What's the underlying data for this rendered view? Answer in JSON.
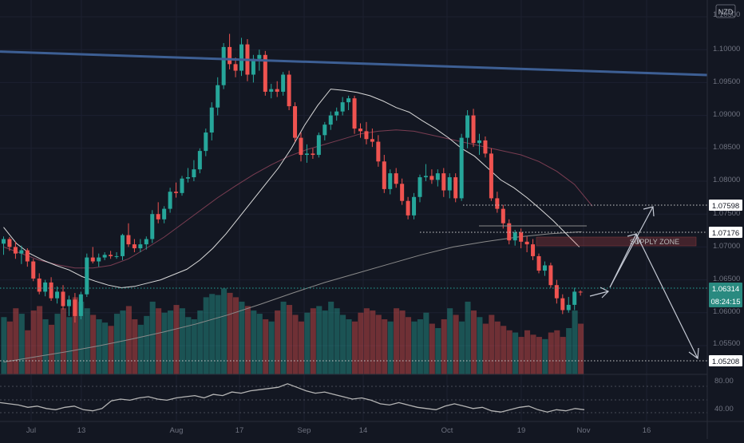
{
  "currency_badge": "NZD",
  "supply_zone_label": "SUPPLY ZONE",
  "price_axis": {
    "ticks": [
      "1.10500",
      "1.10000",
      "1.09500",
      "1.09000",
      "1.08500",
      "1.08000",
      "1.07500",
      "1.07000",
      "1.06500",
      "1.06000",
      "1.05500"
    ]
  },
  "price_tags": {
    "level_1": "1.07598",
    "level_2": "1.07176",
    "current": "1.06314",
    "countdown": "08:24:15",
    "level_3": "1.05208"
  },
  "oscillator_axis": {
    "ticks": [
      "80.00",
      "40.00"
    ]
  },
  "time_axis": {
    "ticks": [
      "Jul",
      "13",
      "Aug",
      "17",
      "Sep",
      "14",
      "Oct",
      "19",
      "Nov",
      "16"
    ]
  },
  "colors": {
    "background": "#131722",
    "bull": "#26a69a",
    "bear": "#ef5350",
    "trendline": "#3d5f94",
    "ma_fast": "#d9d9d9",
    "ma_mid": "#7a3d52",
    "ma_slow": "#8a8a8a",
    "tag_bg": "#ffffff",
    "current_tag_bg": "#2a8a80"
  },
  "chart_data": {
    "type": "candlestick",
    "y_range": [
      1.0495,
      1.1073
    ],
    "oscillator_range": [
      20,
      100
    ],
    "candles": [
      [
        1.0705,
        1.0716,
        1.0688,
        1.0712
      ],
      [
        1.0712,
        1.0715,
        1.0694,
        1.07
      ],
      [
        1.07,
        1.0708,
        1.0682,
        1.069
      ],
      [
        1.069,
        1.0702,
        1.0674,
        1.0695
      ],
      [
        1.0695,
        1.0698,
        1.067,
        1.0678
      ],
      [
        1.0678,
        1.0682,
        1.0648,
        1.0652
      ],
      [
        1.0652,
        1.066,
        1.0628,
        1.0632
      ],
      [
        1.0632,
        1.065,
        1.0625,
        1.0646
      ],
      [
        1.0646,
        1.0654,
        1.0618,
        1.0622
      ],
      [
        1.0622,
        1.064,
        1.0614,
        1.0632
      ],
      [
        1.0632,
        1.0642,
        1.0605,
        1.061
      ],
      [
        1.061,
        1.0626,
        1.0595,
        1.062
      ],
      [
        1.062,
        1.063,
        1.0585,
        1.0595
      ],
      [
        1.0595,
        1.0632,
        1.059,
        1.0628
      ],
      [
        1.0628,
        1.069,
        1.0624,
        1.0684
      ],
      [
        1.0684,
        1.07,
        1.0675,
        1.0678
      ],
      [
        1.0678,
        1.069,
        1.067,
        1.0684
      ],
      [
        1.0684,
        1.0692,
        1.068,
        1.0688
      ],
      [
        1.0688,
        1.0694,
        1.0682,
        1.0686
      ],
      [
        1.0686,
        1.0692,
        1.0682,
        1.0686
      ],
      [
        1.0686,
        1.072,
        1.068,
        1.0718
      ],
      [
        1.0718,
        1.0736,
        1.07,
        1.0704
      ],
      [
        1.0704,
        1.0712,
        1.0692,
        1.0698
      ],
      [
        1.0698,
        1.0712,
        1.0692,
        1.0704
      ],
      [
        1.0704,
        1.0716,
        1.0696,
        1.0712
      ],
      [
        1.0712,
        1.0756,
        1.0706,
        1.075
      ],
      [
        1.075,
        1.0768,
        1.0736,
        1.0742
      ],
      [
        1.0742,
        1.0762,
        1.0736,
        1.0758
      ],
      [
        1.0758,
        1.079,
        1.0752,
        1.0784
      ],
      [
        1.0784,
        1.0798,
        1.0775,
        1.0782
      ],
      [
        1.0782,
        1.0808,
        1.0778,
        1.0804
      ],
      [
        1.0804,
        1.082,
        1.0798,
        1.0806
      ],
      [
        1.0806,
        1.0832,
        1.08,
        1.0818
      ],
      [
        1.0818,
        1.085,
        1.0812,
        1.0846
      ],
      [
        1.0846,
        1.088,
        1.0838,
        1.0874
      ],
      [
        1.0874,
        1.092,
        1.0862,
        1.0912
      ],
      [
        1.0912,
        1.0958,
        1.09,
        1.0946
      ],
      [
        1.0946,
        1.101,
        1.094,
        1.1004
      ],
      [
        1.1004,
        1.1024,
        1.097,
        1.0978
      ],
      [
        1.0978,
        1.0988,
        1.0958,
        1.0968
      ],
      [
        1.0968,
        1.1018,
        1.096,
        1.1008
      ],
      [
        1.1008,
        1.1016,
        1.0952,
        1.0962
      ],
      [
        1.0962,
        1.0992,
        1.095,
        1.0986
      ],
      [
        1.0986,
        1.1,
        1.0968,
        1.0992
      ],
      [
        1.0992,
        1.0998,
        1.093,
        1.0936
      ],
      [
        1.0936,
        1.0948,
        1.0926,
        1.094
      ],
      [
        1.094,
        1.0952,
        1.0928,
        1.0936
      ],
      [
        1.0936,
        1.0966,
        1.093,
        1.0962
      ],
      [
        1.0962,
        1.0968,
        1.0908,
        1.0914
      ],
      [
        1.0914,
        1.092,
        1.086,
        1.0866
      ],
      [
        1.0866,
        1.0874,
        1.083,
        1.084
      ],
      [
        1.084,
        1.0856,
        1.0828,
        1.0842
      ],
      [
        1.0842,
        1.085,
        1.0834,
        1.084
      ],
      [
        1.084,
        1.0874,
        1.0836,
        1.087
      ],
      [
        1.087,
        1.089,
        1.0862,
        1.0886
      ],
      [
        1.0886,
        1.0906,
        1.0878,
        1.09
      ],
      [
        1.09,
        1.0912,
        1.0892,
        1.0906
      ],
      [
        1.0906,
        1.0928,
        1.09,
        1.092
      ],
      [
        1.092,
        1.093,
        1.0908,
        1.0926
      ],
      [
        1.0926,
        1.093,
        1.0872,
        1.088
      ],
      [
        1.088,
        1.0888,
        1.0866,
        1.0876
      ],
      [
        1.0876,
        1.089,
        1.0856,
        1.0864
      ],
      [
        1.0864,
        1.088,
        1.0852,
        1.086
      ],
      [
        1.086,
        1.087,
        1.0822,
        1.083
      ],
      [
        1.083,
        1.084,
        1.0782,
        1.0788
      ],
      [
        1.0788,
        1.0818,
        1.078,
        1.0812
      ],
      [
        1.0812,
        1.082,
        1.079,
        1.0796
      ],
      [
        1.0796,
        1.0804,
        1.0764,
        1.077
      ],
      [
        1.077,
        1.0776,
        1.0742,
        1.0748
      ],
      [
        1.0748,
        1.0782,
        1.0742,
        1.0776
      ],
      [
        1.0776,
        1.081,
        1.0768,
        1.0806
      ],
      [
        1.0806,
        1.0826,
        1.08,
        1.0808
      ],
      [
        1.0808,
        1.0818,
        1.0796,
        1.0802
      ],
      [
        1.0802,
        1.0818,
        1.0792,
        1.0812
      ],
      [
        1.0812,
        1.082,
        1.0776,
        1.0786
      ],
      [
        1.0786,
        1.0812,
        1.0774,
        1.0806
      ],
      [
        1.0806,
        1.0812,
        1.0768,
        1.0774
      ],
      [
        1.0774,
        1.0872,
        1.077,
        1.0866
      ],
      [
        1.0866,
        1.0908,
        1.085,
        1.09
      ],
      [
        1.09,
        1.091,
        1.0852,
        1.0858
      ],
      [
        1.0858,
        1.0872,
        1.084,
        1.0862
      ],
      [
        1.0862,
        1.0868,
        1.0836,
        1.0842
      ],
      [
        1.0842,
        1.085,
        1.077,
        1.0774
      ],
      [
        1.0774,
        1.0784,
        1.0752,
        1.0758
      ],
      [
        1.0758,
        1.0764,
        1.0728,
        1.0736
      ],
      [
        1.0736,
        1.0742,
        1.0704,
        1.071
      ],
      [
        1.071,
        1.0726,
        1.0702,
        1.0722
      ],
      [
        1.0722,
        1.0728,
        1.0698,
        1.0708
      ],
      [
        1.0708,
        1.0716,
        1.0692,
        1.0704
      ],
      [
        1.0704,
        1.0712,
        1.068,
        1.0686
      ],
      [
        1.0686,
        1.069,
        1.066,
        1.0664
      ],
      [
        1.0664,
        1.0678,
        1.0656,
        1.0672
      ],
      [
        1.0672,
        1.0676,
        1.0638,
        1.0642
      ],
      [
        1.0642,
        1.065,
        1.0614,
        1.0622
      ],
      [
        1.0622,
        1.0628,
        1.0598,
        1.0604
      ],
      [
        1.0604,
        1.0624,
        1.06,
        1.0612
      ],
      [
        1.0612,
        1.0638,
        1.0604,
        1.0632
      ],
      [
        1.0632,
        1.0634,
        1.0626,
        1.0631
      ]
    ],
    "volume": [
      52,
      48,
      60,
      55,
      40,
      58,
      62,
      50,
      45,
      55,
      60,
      52,
      70,
      66,
      60,
      54,
      50,
      47,
      44,
      55,
      58,
      62,
      50,
      45,
      53,
      66,
      60,
      56,
      58,
      63,
      60,
      52,
      50,
      58,
      70,
      73,
      72,
      78,
      74,
      70,
      66,
      62,
      58,
      55,
      50,
      48,
      58,
      66,
      63,
      54,
      48,
      56,
      60,
      62,
      58,
      66,
      60,
      54,
      50,
      48,
      56,
      60,
      58,
      54,
      50,
      48,
      60,
      58,
      52,
      48,
      50,
      56,
      46,
      42,
      50,
      60,
      54,
      48,
      66,
      58,
      52,
      46,
      54,
      48,
      44,
      40,
      38,
      34,
      40,
      36,
      34,
      32,
      38,
      40,
      34,
      42,
      58,
      46
    ],
    "ma_fast": [
      1.073,
      1.0705,
      1.069,
      1.068,
      1.0672,
      1.0665,
      1.0655,
      1.0648,
      1.0642,
      1.0638,
      1.064,
      1.0645,
      1.065,
      1.0658,
      1.0666,
      1.068,
      1.0698,
      1.072,
      1.0745,
      1.077,
      1.0795,
      1.082,
      1.085,
      1.0885,
      1.0915,
      1.094,
      1.0938,
      1.0935,
      1.093,
      1.0922,
      1.0912,
      1.0905,
      1.0892,
      1.088,
      1.0866,
      1.085,
      1.0838,
      1.082,
      1.0802,
      1.079,
      1.0775,
      1.0758,
      1.074,
      1.072,
      1.07
    ],
    "ma_fast_start": 0,
    "ma_fast_step": 2.2,
    "ma_mid": [
      1.07,
      1.069,
      1.068,
      1.0673,
      1.0668,
      1.0668,
      1.0672,
      1.0682,
      1.0698,
      1.0715,
      1.0735,
      1.0755,
      1.0775,
      1.0793,
      1.081,
      1.0825,
      1.0838,
      1.0848,
      1.0856,
      1.0864,
      1.0872,
      1.0876,
      1.0878,
      1.0876,
      1.087,
      1.0864,
      1.0858,
      1.0852,
      1.0846,
      1.084,
      1.083,
      1.0815,
      1.0795,
      1.0762
    ],
    "ma_mid_step": 3.0,
    "ma_slow": [
      1.0525,
      1.0533,
      1.0541,
      1.055,
      1.056,
      1.0571,
      1.0583,
      1.0597,
      1.0613,
      1.063,
      1.0646,
      1.066,
      1.0674,
      1.0688,
      1.07,
      1.0708,
      1.0715,
      1.072,
      1.0723
    ],
    "ma_slow_step": 5.4,
    "trendline": {
      "from": [
        0,
        1.0997
      ],
      "to": [
        160,
        1.0949
      ]
    },
    "oscillator": [
      52,
      50,
      48,
      44,
      46,
      42,
      40,
      44,
      46,
      40,
      38,
      42,
      55,
      58,
      56,
      60,
      62,
      58,
      56,
      60,
      62,
      64,
      60,
      66,
      64,
      70,
      68,
      72,
      74,
      76,
      78,
      84,
      78,
      72,
      68,
      70,
      66,
      62,
      58,
      60,
      56,
      50,
      48,
      52,
      48,
      44,
      42,
      40,
      46,
      50,
      46,
      42,
      44,
      38,
      36,
      40,
      44,
      46,
      40,
      36,
      40,
      38,
      42,
      40
    ],
    "levels_note_visible": false
  }
}
